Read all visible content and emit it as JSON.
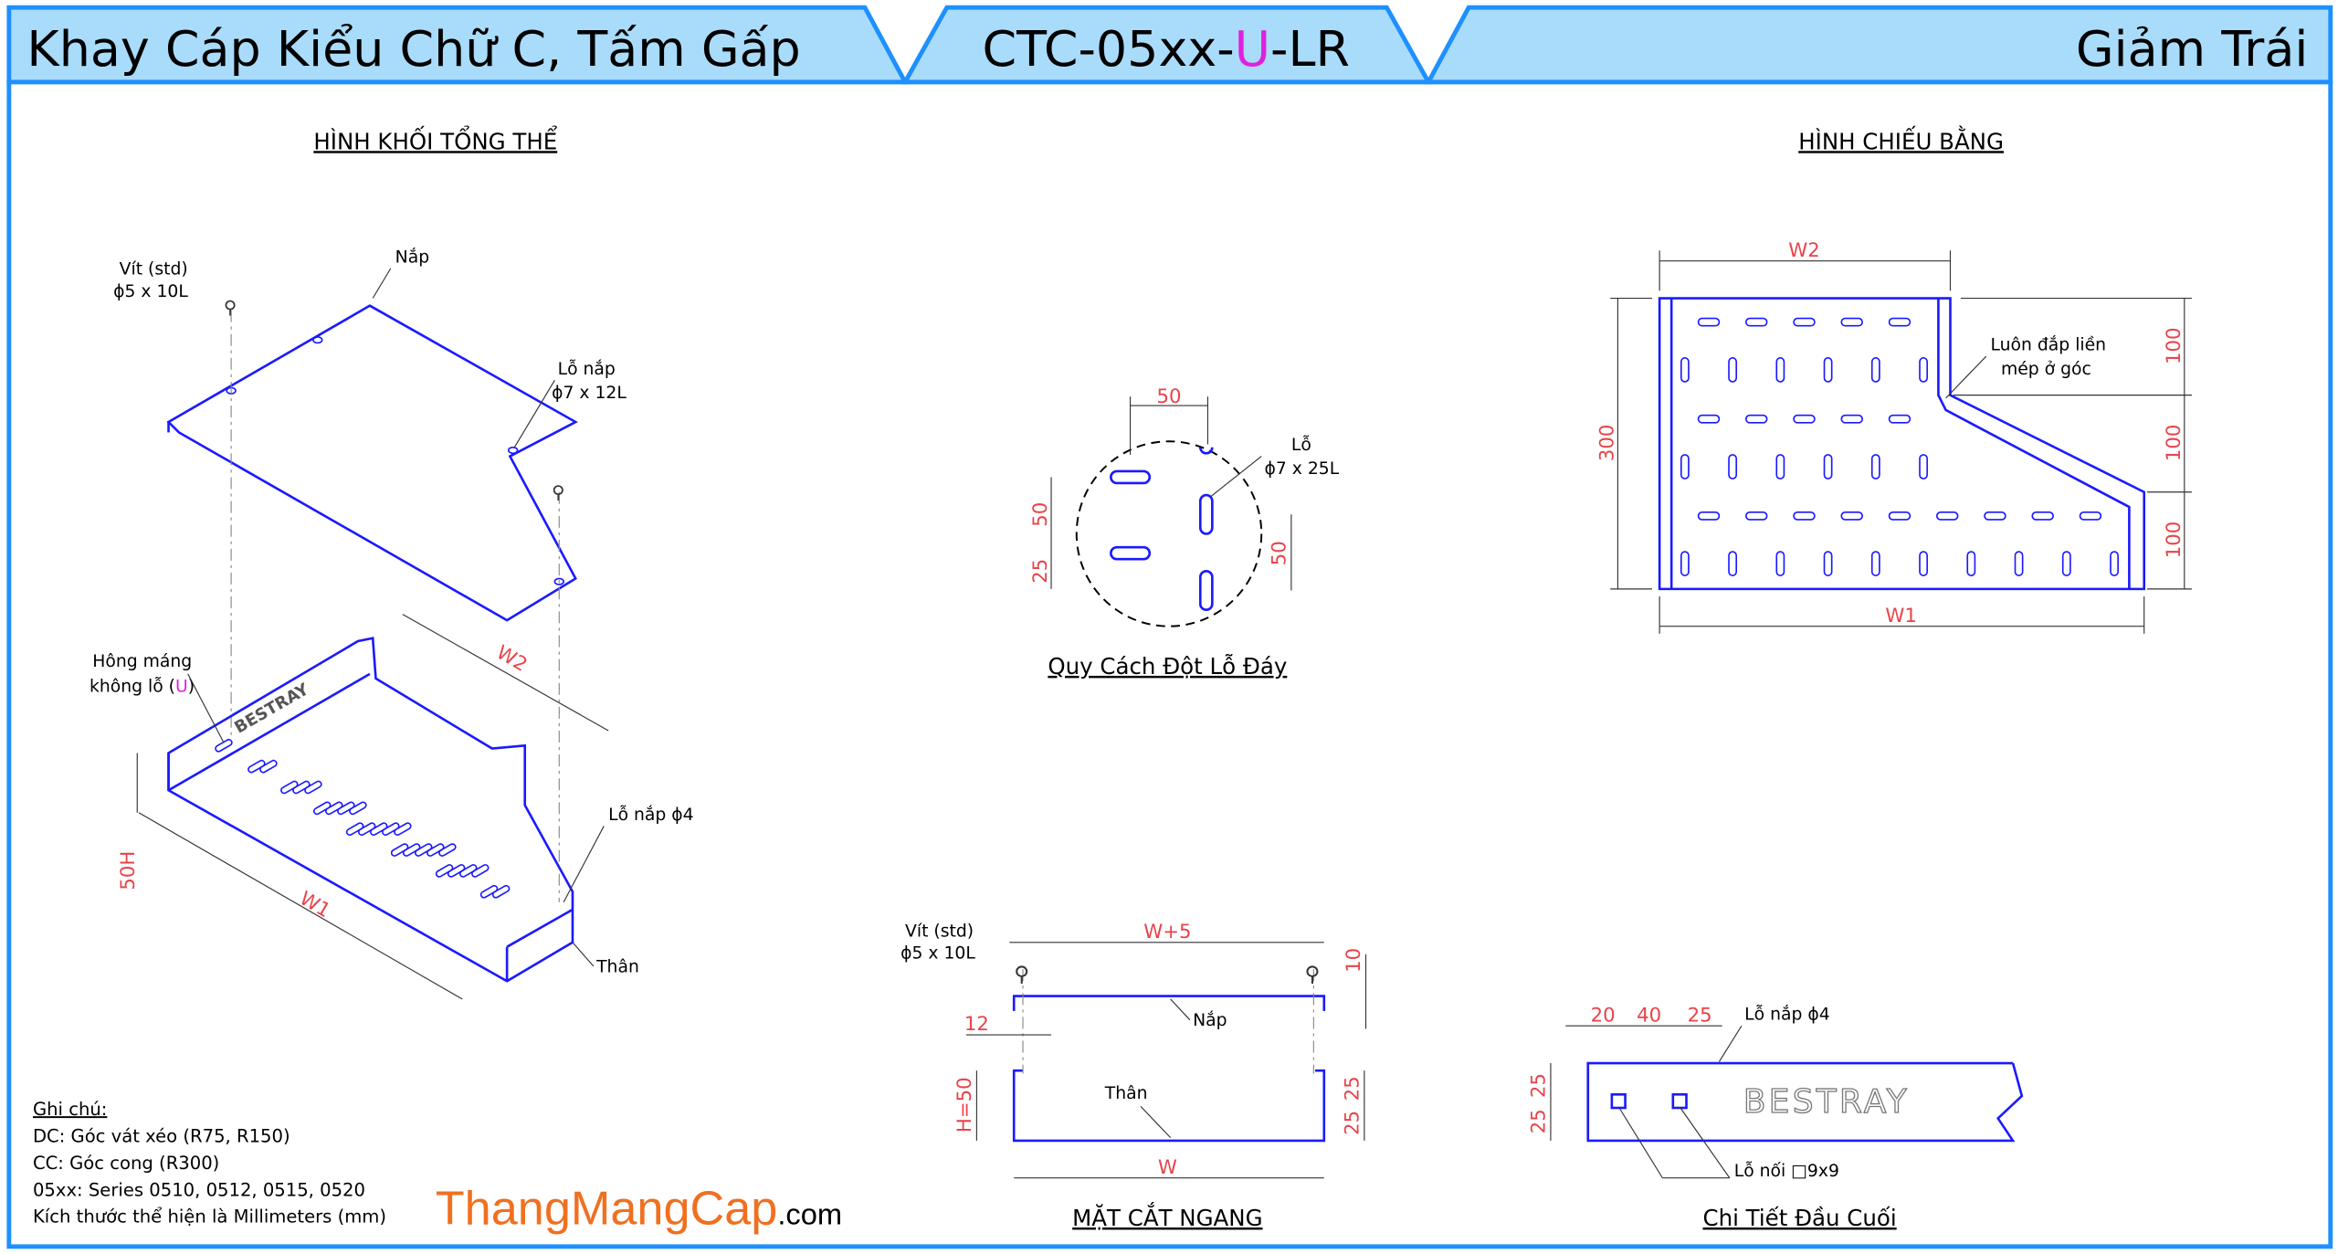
{
  "header": {
    "left_title": "Khay Cáp Kiểu Chữ C, Tấm Gấp",
    "code_prefix": "CTC-05xx-",
    "code_highlight": "U",
    "code_suffix": "-LR",
    "right_title": "Giảm Trái"
  },
  "colors": {
    "header_fill": "#a9dcfa",
    "border": "#1e90ff",
    "part": "#1a1aff",
    "dimension": "#e8444a",
    "highlight": "#e020e0",
    "brand": "#f07020"
  },
  "iso_view": {
    "title": "HÌNH KHỐI TỔNG THỂ",
    "screw_label_1": "Vít (std)",
    "screw_label_2": "ϕ5 x 10L",
    "lid_label": "Nắp",
    "lid_hole_1": "Lỗ nắp",
    "lid_hole_2": "ϕ7 x 12L",
    "side_label_1": "Hông máng",
    "side_label_2a": "không lỗ (",
    "side_label_2b": "U",
    "side_label_2c": ")",
    "lid_hole_small": "Lỗ nắp ϕ4",
    "body_label": "Thân",
    "dim_w1": "W1",
    "dim_w2": "W2",
    "dim_h": "50H",
    "brand_stamp": "BESTRAY"
  },
  "hole_pattern": {
    "title": "Quy Cách Đột Lỗ Đáy",
    "dim_top": "50",
    "dim_left_1": "50",
    "dim_left_2": "25",
    "dim_right": "50",
    "hole_label_1": "Lỗ",
    "hole_label_2": "ϕ7 x 25L"
  },
  "plan_view": {
    "title": "HÌNH CHIẾU BẰNG",
    "dim_w2": "W2",
    "dim_w1": "W1",
    "dim_300": "300",
    "dim_right": [
      "100",
      "100",
      "100"
    ],
    "note_1": "Luôn đắp liền",
    "note_2": "mép ở góc"
  },
  "cross_section": {
    "title": "MẶT CẮT NGANG",
    "screw_1": "Vít (std)",
    "screw_2": "ϕ5 x 10L",
    "dim_top": "W+5",
    "dim_10": "10",
    "dim_12": "12",
    "lid_label": "Nắp",
    "body_label": "Thân",
    "dim_h": "H=50",
    "dim_25a": "25",
    "dim_25b": "25",
    "dim_w": "W"
  },
  "end_detail": {
    "title": "Chi Tiết Đầu Cuối",
    "dims_top": [
      "20",
      "40",
      "25"
    ],
    "lid_hole": "Lỗ nắp ϕ4",
    "dims_left": [
      "25",
      "25"
    ],
    "joint_hole": "Lỗ nối □9x9",
    "brand_stamp": "BESTRAY"
  },
  "notes": {
    "heading": "Ghi chú:",
    "lines": [
      "DC: Góc vát xéo (R75, R150)",
      "CC: Góc cong (R300)",
      "05xx: Series 0510, 0512, 0515, 0520",
      "Kích thước thể hiện là Millimeters (mm)"
    ]
  },
  "brand": {
    "name": "ThangMangCap",
    "suffix": ".com"
  }
}
